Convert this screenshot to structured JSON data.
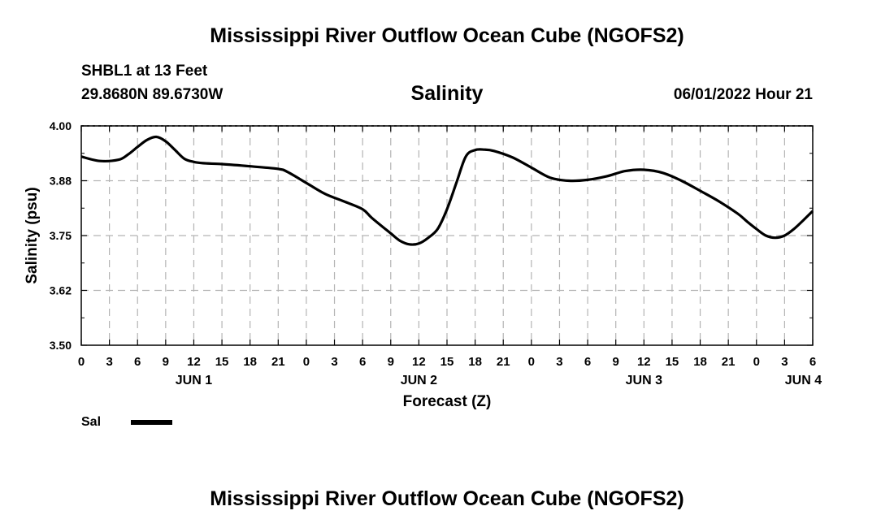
{
  "header": {
    "main_title": "Mississippi River Outflow Ocean Cube (NGOFS2)",
    "station": "SHBL1 at 13 Feet",
    "coords": "29.8680N  89.6730W",
    "chart_title": "Salinity",
    "datetime": "06/01/2022 Hour 21"
  },
  "footer": {
    "title": "Mississippi River Outflow Ocean Cube (NGOFS2)"
  },
  "chart_data": {
    "type": "line",
    "title": "Salinity",
    "xlabel": "Forecast (Z)",
    "ylabel": "Salinity (psu)",
    "xlim": [
      0,
      78
    ],
    "ylim": [
      3.5,
      4.0
    ],
    "x_ticks": [
      0,
      3,
      6,
      9,
      12,
      15,
      18,
      21,
      24,
      27,
      30,
      33,
      36,
      39,
      42,
      45,
      48,
      51,
      54,
      57,
      60,
      63,
      66,
      69,
      72,
      75,
      78
    ],
    "x_tick_labels": [
      "0",
      "3",
      "6",
      "9",
      "12",
      "15",
      "18",
      "21",
      "0",
      "3",
      "6",
      "9",
      "12",
      "15",
      "18",
      "21",
      "0",
      "3",
      "6",
      "9",
      "12",
      "15",
      "18",
      "21",
      "0",
      "3",
      "6"
    ],
    "day_labels": [
      {
        "x": 12,
        "label": "JUN 1"
      },
      {
        "x": 36,
        "label": "JUN 2"
      },
      {
        "x": 60,
        "label": "JUN 3"
      },
      {
        "x": 77,
        "label": "JUN 4"
      }
    ],
    "y_ticks": [
      3.5,
      3.625,
      3.75,
      3.875,
      4.0
    ],
    "y_tick_labels": [
      "3.50",
      "3.62",
      "3.75",
      "3.88",
      "4.00"
    ],
    "grid": true,
    "legend": {
      "position": "bottom-left",
      "entries": [
        {
          "name": "Sal",
          "color": "#000000"
        }
      ]
    },
    "series": [
      {
        "name": "Sal",
        "color": "#000000",
        "x": [
          0,
          2,
          4,
          5,
          6,
          7,
          8,
          9,
          10,
          11,
          12,
          13,
          15,
          18,
          21,
          22,
          24,
          26,
          28,
          30,
          31,
          33,
          34,
          35,
          36,
          37,
          38,
          39,
          40,
          41,
          42,
          43,
          44,
          46,
          48,
          50,
          52,
          54,
          56,
          58,
          60,
          62,
          64,
          66,
          68,
          70,
          71,
          72,
          73,
          74,
          75,
          76,
          77,
          78
        ],
        "values": [
          3.93,
          3.92,
          3.923,
          3.935,
          3.952,
          3.968,
          3.975,
          3.965,
          3.945,
          3.925,
          3.918,
          3.915,
          3.913,
          3.908,
          3.902,
          3.895,
          3.87,
          3.845,
          3.828,
          3.81,
          3.79,
          3.755,
          3.738,
          3.73,
          3.732,
          3.745,
          3.765,
          3.81,
          3.87,
          3.93,
          3.945,
          3.946,
          3.943,
          3.928,
          3.905,
          3.882,
          3.875,
          3.877,
          3.885,
          3.897,
          3.9,
          3.893,
          3.875,
          3.852,
          3.828,
          3.8,
          3.782,
          3.765,
          3.75,
          3.745,
          3.75,
          3.765,
          3.785,
          3.806
        ]
      }
    ]
  }
}
